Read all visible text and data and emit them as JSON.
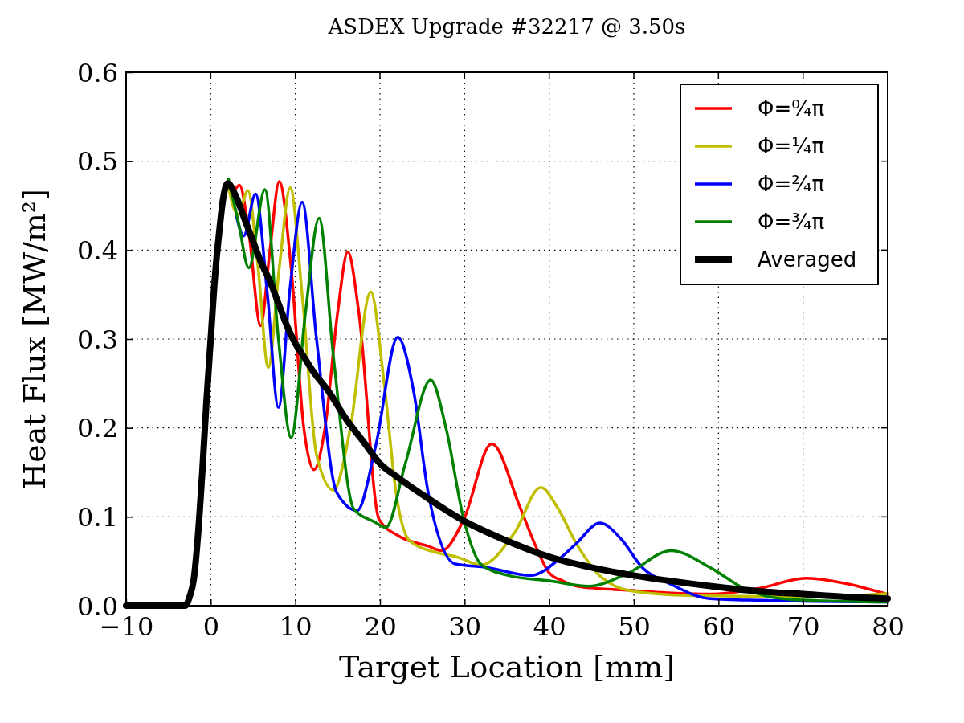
{
  "chart_data": {
    "type": "line",
    "title": "ASDEX Upgrade #32217 @ 3.50s",
    "xlabel": "Target Location [mm]",
    "ylabel": "Heat Flux [MW/m²]",
    "xlim": [
      -10,
      80
    ],
    "xticks": [
      {
        "value": -10,
        "label": "−10"
      },
      0,
      10,
      20,
      30,
      40,
      50,
      60,
      70,
      80
    ],
    "ylim": [
      0,
      0.6
    ],
    "yticks": [
      {
        "value": 0,
        "label": "0.0"
      },
      0.1,
      0.2,
      0.3,
      0.4,
      0.5,
      0.6
    ],
    "grid": true,
    "legend": "top right",
    "line_style": "solid",
    "marker": "none",
    "series": [
      {
        "name": "Φ=⁰⁄₄π",
        "color": "#ff0000",
        "x": [
          2.7,
          3.4,
          4.5,
          5.9,
          7,
          8.1,
          9.5,
          11,
          12.2,
          13.5,
          15,
          16.2,
          17.5,
          19.9,
          22.3,
          25.7,
          27.3,
          29.9,
          33.2,
          36.5,
          38.4,
          40,
          41.6,
          43.2,
          45,
          50,
          55,
          59,
          65,
          70.3,
          75,
          79.2,
          80
        ],
        "values": [
          0.465,
          0.473,
          0.42,
          0.315,
          0.4,
          0.477,
          0.38,
          0.2,
          0.153,
          0.2,
          0.33,
          0.398,
          0.33,
          0.097,
          0.078,
          0.067,
          0.062,
          0.097,
          0.182,
          0.112,
          0.067,
          0.037,
          0.028,
          0.022,
          0.02,
          0.017,
          0.014,
          0.013,
          0.02,
          0.031,
          0.025,
          0.015,
          0.013
        ]
      },
      {
        "name": "Φ=¹⁄₄π",
        "color": "#bfbf00",
        "x": [
          2,
          3.2,
          4.4,
          5.6,
          6.8,
          8.1,
          9.4,
          10.8,
          12.5,
          14.5,
          16.5,
          18.9,
          20.5,
          21.9,
          23.5,
          26.6,
          29,
          32,
          35.9,
          39,
          41,
          43.2,
          46.3,
          50.1,
          55,
          59,
          70,
          79.2,
          80
        ],
        "values": [
          0.475,
          0.44,
          0.467,
          0.38,
          0.268,
          0.38,
          0.47,
          0.35,
          0.17,
          0.13,
          0.2,
          0.353,
          0.25,
          0.127,
          0.073,
          0.06,
          0.055,
          0.046,
          0.082,
          0.133,
          0.11,
          0.07,
          0.031,
          0.016,
          0.012,
          0.011,
          0.01,
          0.013,
          0.014
        ]
      },
      {
        "name": "Φ=²⁄₄π",
        "color": "#0000ff",
        "x": [
          3,
          3.9,
          5.3,
          6.7,
          8,
          9.4,
          10.8,
          12.5,
          14.9,
          17.3,
          19.5,
          22.1,
          24,
          25.7,
          28.9,
          32.7,
          37.8,
          41.6,
          43.2,
          46,
          48.5,
          51,
          54.2,
          59,
          65,
          70,
          80
        ],
        "values": [
          0.44,
          0.416,
          0.463,
          0.35,
          0.223,
          0.36,
          0.454,
          0.3,
          0.127,
          0.107,
          0.18,
          0.302,
          0.24,
          0.127,
          0.047,
          0.043,
          0.034,
          0.056,
          0.07,
          0.093,
          0.075,
          0.043,
          0.025,
          0.008,
          0.006,
          0.005,
          0.004
        ]
      },
      {
        "name": "Φ=³⁄₄π",
        "color": "#008000",
        "x": [
          2.1,
          3.3,
          4.5,
          6.4,
          8,
          9.5,
          11.2,
          12.8,
          14.5,
          16.9,
          19.4,
          20.7,
          23,
          26,
          27.8,
          29.9,
          32,
          35.2,
          40,
          44.7,
          49.4,
          54.4,
          59,
          63.1,
          68.5,
          80
        ],
        "values": [
          0.48,
          0.43,
          0.38,
          0.468,
          0.3,
          0.189,
          0.33,
          0.436,
          0.28,
          0.109,
          0.094,
          0.088,
          0.16,
          0.254,
          0.2,
          0.097,
          0.046,
          0.034,
          0.028,
          0.022,
          0.037,
          0.062,
          0.043,
          0.019,
          0.007,
          0.004
        ]
      },
      {
        "name": "Averaged",
        "color": "#000000",
        "x": [
          -10,
          -3,
          -2.5,
          -2,
          -1.5,
          -1,
          -0.5,
          0,
          0.5,
          1,
          1.5,
          2,
          3,
          4,
          5,
          6,
          7,
          8,
          9,
          10,
          11,
          12,
          14,
          16,
          18,
          20,
          22,
          25,
          30,
          35,
          40,
          45,
          50,
          55,
          60,
          65,
          70,
          75,
          80
        ],
        "values": [
          0,
          0,
          0.01,
          0.03,
          0.08,
          0.15,
          0.23,
          0.3,
          0.37,
          0.42,
          0.46,
          0.475,
          0.46,
          0.435,
          0.41,
          0.385,
          0.365,
          0.34,
          0.315,
          0.295,
          0.28,
          0.265,
          0.24,
          0.21,
          0.185,
          0.16,
          0.145,
          0.125,
          0.095,
          0.073,
          0.055,
          0.043,
          0.034,
          0.027,
          0.021,
          0.016,
          0.013,
          0.01,
          0.008
        ]
      }
    ]
  }
}
